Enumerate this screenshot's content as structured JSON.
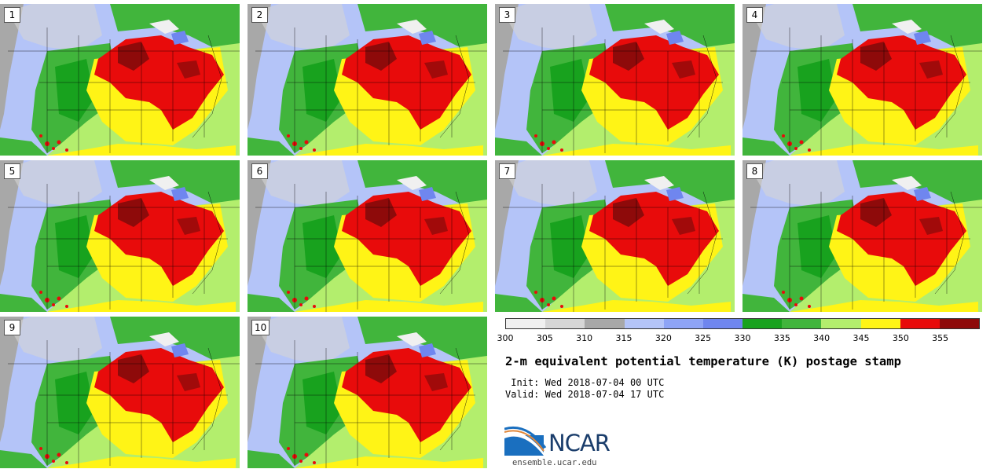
{
  "panels": [
    {
      "label": "1"
    },
    {
      "label": "2"
    },
    {
      "label": "3"
    },
    {
      "label": "4"
    },
    {
      "label": "5"
    },
    {
      "label": "6"
    },
    {
      "label": "7"
    },
    {
      "label": "8"
    },
    {
      "label": "9"
    },
    {
      "label": "10"
    }
  ],
  "colorbar": {
    "ticks": [
      "300",
      "305",
      "310",
      "315",
      "320",
      "325",
      "330",
      "335",
      "340",
      "345",
      "350",
      "355"
    ],
    "colors": [
      "#f0f0f0",
      "#d6d6d6",
      "#a8a8a8",
      "#b4c4f8",
      "#8ea4f6",
      "#6f86ef",
      "#18a21e",
      "#41b53c",
      "#b3ee6d",
      "#fff416",
      "#e80b0b",
      "#8e0a0a"
    ]
  },
  "title": "2-m equivalent potential temperature (K) postage stamp",
  "init": " Init: Wed 2018-07-04 00 UTC",
  "valid": "Valid: Wed 2018-07-04 17 UTC",
  "logo": {
    "text": "NCAR"
  },
  "url": "ensemble.ucar.edu"
}
